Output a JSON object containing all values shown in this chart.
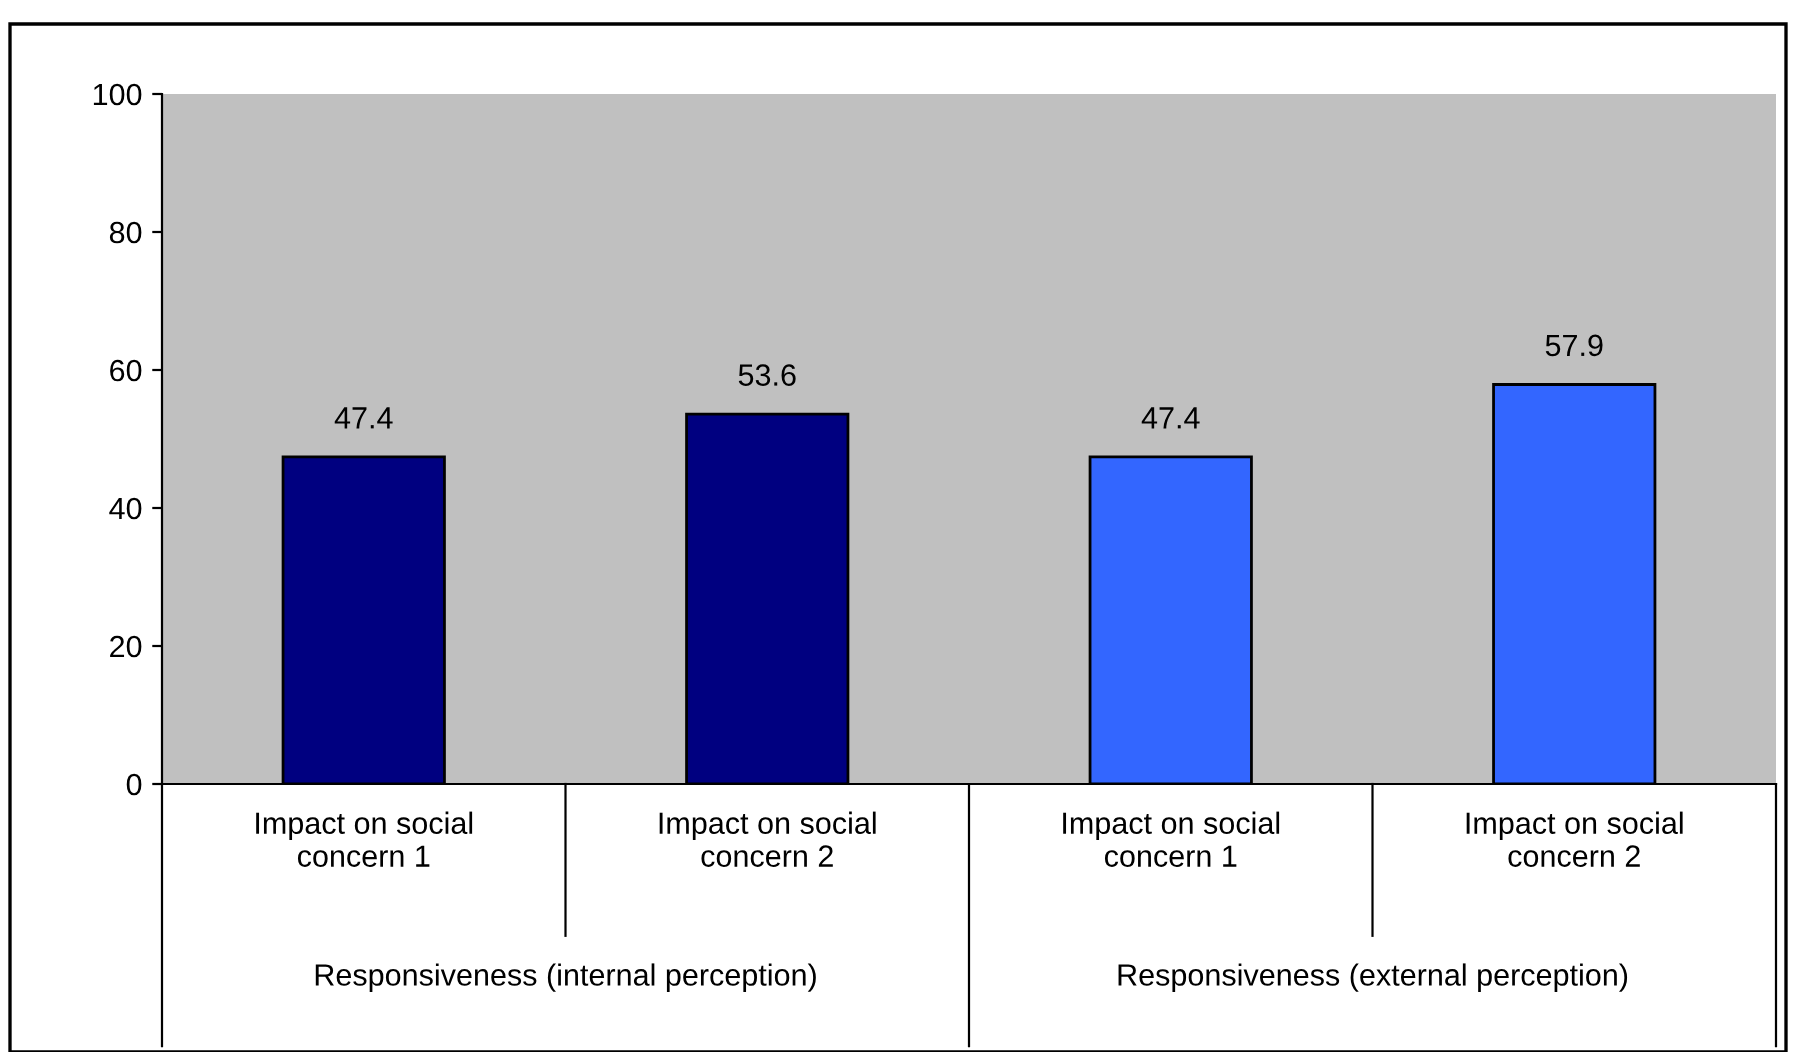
{
  "chart_data": {
    "type": "bar",
    "categories": [
      "Impact on social\nconcern 1",
      "Impact on social\nconcern 2",
      "Impact on social\nconcern 1",
      "Impact on social\nconcern 2"
    ],
    "values": [
      47.4,
      53.6,
      47.4,
      57.9
    ],
    "colors": [
      "#000080",
      "#000080",
      "#3366ff",
      "#3366ff"
    ],
    "ylim": [
      0,
      100
    ],
    "yticks": [
      0,
      20,
      40,
      60,
      80,
      100
    ],
    "grid": false,
    "data_labels": true,
    "legend": false,
    "annotations": [
      "Responsiveness (internal perception)",
      "Responsiveness (external perception)"
    ]
  }
}
